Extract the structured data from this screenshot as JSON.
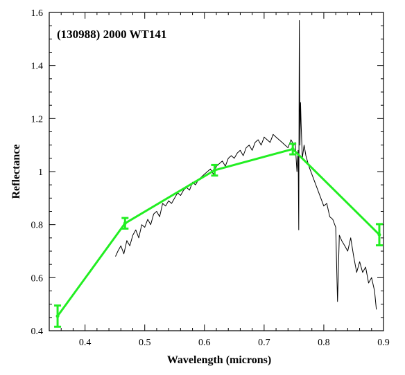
{
  "chart_data": {
    "type": "line",
    "title": "(130988) 2000 WT141",
    "xlabel": "Wavelength (microns)",
    "ylabel": "Reflectance",
    "xlim": [
      0.34,
      0.9
    ],
    "ylim": [
      0.4,
      1.6
    ],
    "xticks": [
      0.4,
      0.5,
      0.6,
      0.7,
      0.8,
      0.9
    ],
    "xtick_labels": [
      "0.4",
      "0.5",
      "0.6",
      "0.7",
      "0.8",
      "0.9"
    ],
    "yticks": [
      0.4,
      0.6,
      0.8,
      1.0,
      1.2,
      1.4,
      1.6
    ],
    "ytick_labels": [
      "0.4",
      "0.6",
      "0.8",
      "1",
      "1.2",
      "1.4",
      "1.6"
    ],
    "grid": false,
    "series": [
      {
        "kind": "spectrum",
        "color": "#000000",
        "x": [
          0.451,
          0.455,
          0.46,
          0.465,
          0.47,
          0.475,
          0.48,
          0.485,
          0.49,
          0.495,
          0.5,
          0.505,
          0.51,
          0.515,
          0.52,
          0.525,
          0.53,
          0.535,
          0.54,
          0.545,
          0.55,
          0.555,
          0.56,
          0.565,
          0.57,
          0.575,
          0.58,
          0.585,
          0.59,
          0.595,
          0.6,
          0.605,
          0.61,
          0.615,
          0.62,
          0.625,
          0.63,
          0.635,
          0.64,
          0.645,
          0.65,
          0.655,
          0.66,
          0.665,
          0.67,
          0.675,
          0.68,
          0.685,
          0.69,
          0.695,
          0.7,
          0.705,
          0.71,
          0.715,
          0.72,
          0.725,
          0.73,
          0.735,
          0.74,
          0.745,
          0.75,
          0.752,
          0.755,
          0.757,
          0.758,
          0.759,
          0.76,
          0.761,
          0.762,
          0.764,
          0.767,
          0.77,
          0.775,
          0.78,
          0.785,
          0.79,
          0.795,
          0.8,
          0.805,
          0.81,
          0.815,
          0.82,
          0.823,
          0.826,
          0.83,
          0.835,
          0.84,
          0.845,
          0.85,
          0.855,
          0.86,
          0.865,
          0.87,
          0.875,
          0.88,
          0.885,
          0.888
        ],
        "y": [
          0.68,
          0.7,
          0.72,
          0.69,
          0.74,
          0.72,
          0.76,
          0.78,
          0.75,
          0.8,
          0.79,
          0.82,
          0.8,
          0.84,
          0.85,
          0.83,
          0.88,
          0.87,
          0.89,
          0.88,
          0.9,
          0.92,
          0.91,
          0.93,
          0.94,
          0.93,
          0.96,
          0.95,
          0.97,
          0.98,
          0.99,
          1.0,
          1.01,
          0.99,
          1.02,
          1.03,
          1.04,
          1.02,
          1.05,
          1.06,
          1.05,
          1.07,
          1.08,
          1.06,
          1.09,
          1.1,
          1.08,
          1.11,
          1.12,
          1.1,
          1.13,
          1.12,
          1.11,
          1.14,
          1.13,
          1.12,
          1.11,
          1.1,
          1.09,
          1.12,
          1.1,
          1.11,
          1.0,
          1.08,
          0.78,
          1.57,
          1.1,
          1.26,
          1.18,
          1.05,
          1.1,
          1.06,
          1.02,
          0.99,
          0.96,
          0.93,
          0.9,
          0.87,
          0.88,
          0.83,
          0.82,
          0.79,
          0.51,
          0.76,
          0.74,
          0.72,
          0.7,
          0.75,
          0.68,
          0.62,
          0.66,
          0.62,
          0.64,
          0.58,
          0.6,
          0.55,
          0.48
        ]
      },
      {
        "kind": "photometry",
        "color": "#22ee22",
        "x": [
          0.354,
          0.467,
          0.617,
          0.748,
          0.893
        ],
        "y": [
          0.455,
          0.805,
          1.005,
          1.085,
          0.762
        ],
        "yerr": [
          0.04,
          0.02,
          0.02,
          0.02,
          0.04
        ]
      }
    ]
  }
}
